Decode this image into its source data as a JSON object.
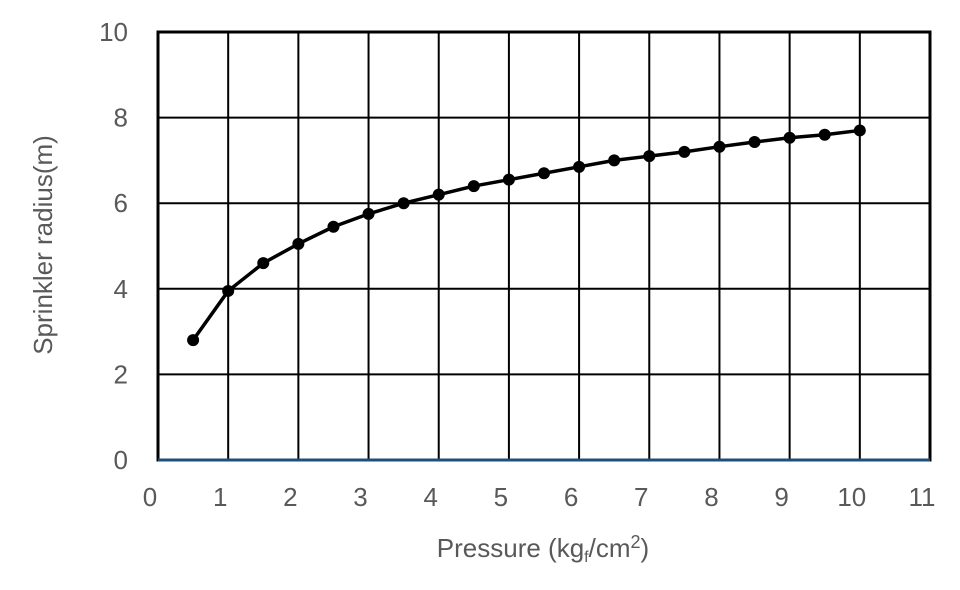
{
  "chart_data": {
    "type": "line",
    "xlabel": "Pressure (kg",
    "xlabel_sub": "f",
    "xlabel_tail": "/cm",
    "xlabel_sup": "2",
    "xlabel_close": ")",
    "ylabel": "Sprinkler radius(m)",
    "xlim": [
      0,
      11
    ],
    "ylim": [
      0,
      10
    ],
    "x_ticks": [
      "0",
      "1",
      "2",
      "3",
      "4",
      "5",
      "6",
      "7",
      "8",
      "9",
      "10",
      "11"
    ],
    "y_ticks": [
      "0",
      "2",
      "4",
      "6",
      "8",
      "10"
    ],
    "grid": true,
    "series": [
      {
        "x": [
          0.5,
          1.0,
          1.5,
          2.0,
          2.5,
          3.0,
          3.5,
          4.0,
          4.5,
          5.0,
          5.5,
          6.0,
          6.5,
          7.0,
          7.5,
          8.0,
          8.5,
          9.0,
          9.5,
          10.0
        ],
        "values": [
          2.8,
          3.95,
          4.6,
          5.05,
          5.45,
          5.75,
          6.0,
          6.2,
          6.4,
          6.55,
          6.7,
          6.85,
          7.0,
          7.1,
          7.2,
          7.32,
          7.43,
          7.53,
          7.6,
          7.7
        ]
      }
    ]
  }
}
